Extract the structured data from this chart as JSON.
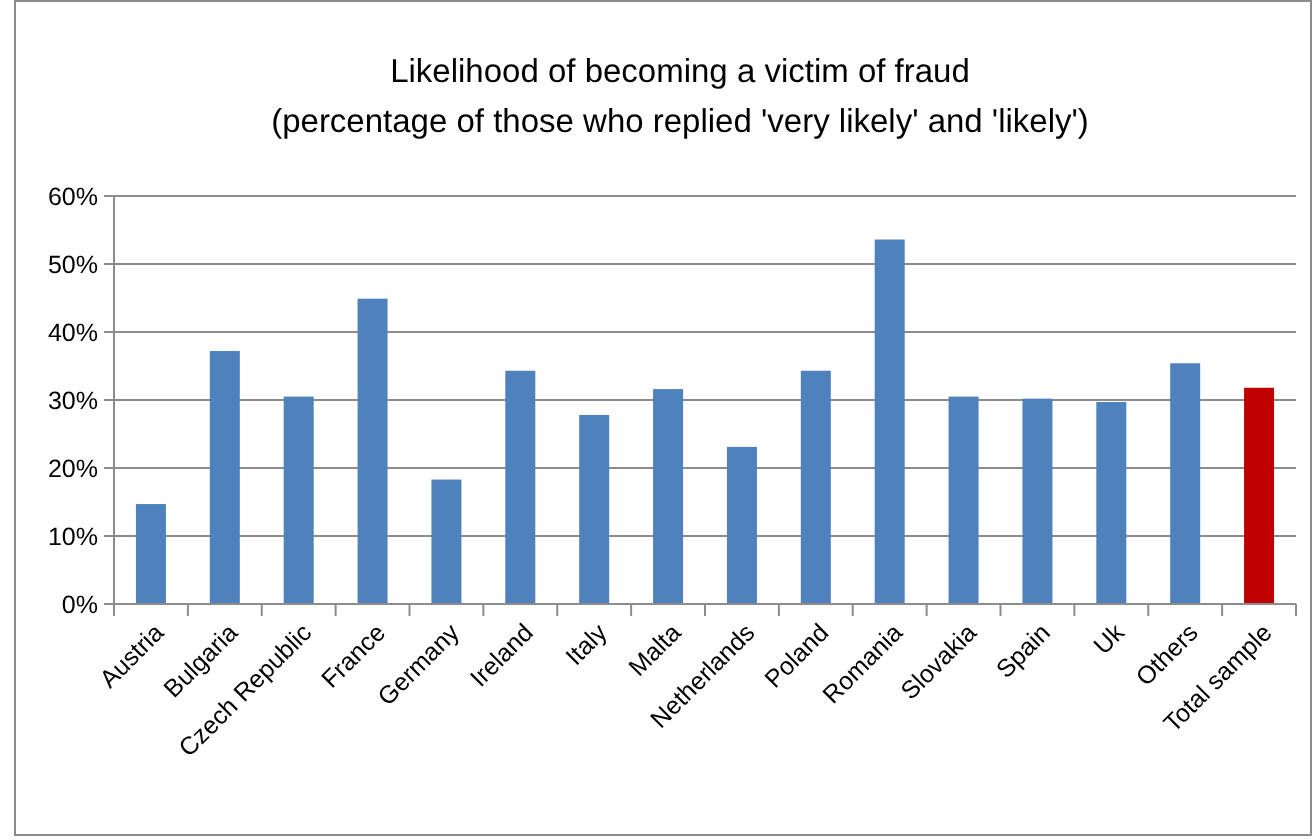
{
  "chart_data": {
    "type": "bar",
    "title": "Likelihood of becoming a victim of fraud",
    "subtitle": "(percentage of those who replied 'very likely' and 'likely')",
    "categories": [
      "Austria",
      "Bulgaria",
      "Czech Republic",
      "France",
      "Germany",
      "Ireland",
      "Italy",
      "Malta",
      "Netherlands",
      "Poland",
      "Romania",
      "Slovakia",
      "Spain",
      "Uk",
      "Others",
      "Total sample"
    ],
    "values": [
      14.7,
      37.2,
      30.5,
      44.9,
      18.3,
      34.3,
      27.8,
      31.6,
      23.1,
      34.3,
      53.6,
      30.5,
      30.2,
      29.7,
      35.4,
      31.8
    ],
    "colors": [
      "#4f81bd",
      "#4f81bd",
      "#4f81bd",
      "#4f81bd",
      "#4f81bd",
      "#4f81bd",
      "#4f81bd",
      "#4f81bd",
      "#4f81bd",
      "#4f81bd",
      "#4f81bd",
      "#4f81bd",
      "#4f81bd",
      "#4f81bd",
      "#4f81bd",
      "#c00000"
    ],
    "ylim": [
      0,
      60
    ],
    "yticks": [
      {
        "value": 0,
        "label": "0%"
      },
      {
        "value": 10,
        "label": "10%"
      },
      {
        "value": 20,
        "label": "20%"
      },
      {
        "value": 30,
        "label": "30%"
      },
      {
        "value": 40,
        "label": "40%"
      },
      {
        "value": 50,
        "label": "50%"
      },
      {
        "value": 60,
        "label": "60%"
      }
    ],
    "grid": "y"
  }
}
